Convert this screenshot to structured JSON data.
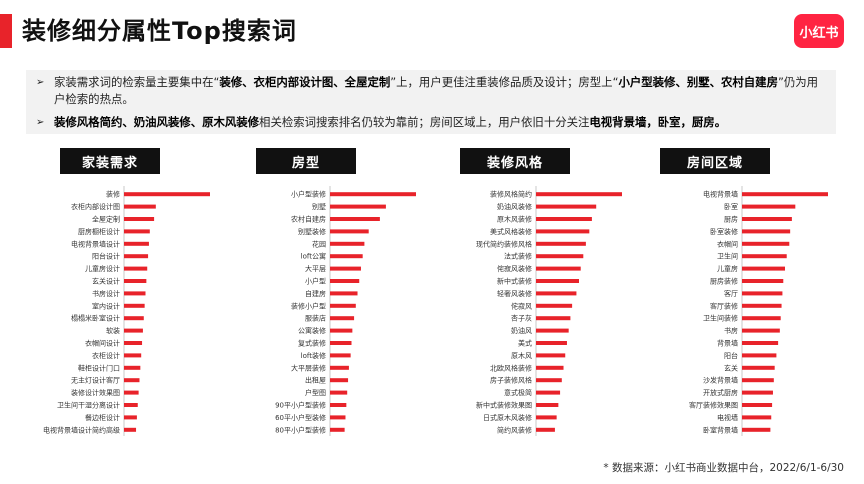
{
  "page": {
    "title": "装修细分属性Top搜索词",
    "logo_text": "小红书",
    "footnote": "* 数据来源：小红书商业数据中台，2022/6/1-6/30",
    "accent_color": "#e8232a"
  },
  "summary": {
    "b1_p1": "家装需求词的检索量主要集中在“",
    "b1_b1": "装修、衣柜内部设计图、全屋定制",
    "b1_p2": "”上，用户更佳注重装修品质及设计；房型上“",
    "b1_b2": "小户型装修、别墅、农村自建房",
    "b1_p3": "”仍为用户检索的热点。",
    "b2_b1": "装修风格简约、奶油风装修、原木风装修",
    "b2_p1": "相关检索词搜索排名仍较为靠前；房间区域上，用户依旧十分关注",
    "b2_b2": "电视背景墙，卧室，厨房。",
    "arrow_icon": "➢"
  },
  "chart_data": [
    {
      "type": "bar",
      "title": "家装需求",
      "categories": [
        "装修",
        "衣柜内部设计图",
        "全屋定制",
        "厨房橱柜设计",
        "电视背景墙设计",
        "阳台设计",
        "儿童房设计",
        "玄关设计",
        "书房设计",
        "室内设计",
        "榻榻米卧室设计",
        "软装",
        "衣帽间设计",
        "衣柜设计",
        "鞋柜设计门口",
        "无主灯设计客厅",
        "装修设计效果图",
        "卫生间干湿分离设计",
        "餐边柜设计",
        "电视背景墙设计简约高级"
      ],
      "values": [
        100,
        37,
        35,
        30,
        29,
        28,
        27,
        26,
        25,
        24,
        23,
        22,
        21,
        20,
        19,
        18,
        17,
        16,
        15,
        14
      ]
    },
    {
      "type": "bar",
      "title": "房型",
      "categories": [
        "小户型装修",
        "别墅",
        "农村自建房",
        "别墅装修",
        "花园",
        "loft公寓",
        "大平层",
        "小户型",
        "自建房",
        "装修小户型",
        "服装店",
        "公寓装修",
        "复式装修",
        "loft装修",
        "大平层装修",
        "出租屋",
        "户型图",
        "90平小户型装修",
        "60平小户型装修",
        "80平小户型装修"
      ],
      "values": [
        100,
        65,
        58,
        45,
        40,
        38,
        36,
        34,
        32,
        30,
        28,
        26,
        25,
        24,
        22,
        21,
        20,
        19,
        18,
        17
      ]
    },
    {
      "type": "bar",
      "title": "装修风格",
      "categories": [
        "装修风格简约",
        "奶油风装修",
        "原木风装修",
        "美式风格装修",
        "现代简约装修风格",
        "法式装修",
        "侘寂风装修",
        "新中式装修",
        "轻奢风装修",
        "侘寂风",
        "杏子灰",
        "奶油风",
        "美式",
        "原木风",
        "北欧风格装修",
        "房子装修风格",
        "意式极简",
        "新中式装修效果图",
        "日式原木风装修",
        "简约风装修"
      ],
      "values": [
        100,
        70,
        65,
        62,
        58,
        55,
        52,
        50,
        47,
        42,
        40,
        38,
        36,
        34,
        32,
        30,
        28,
        26,
        24,
        22
      ]
    },
    {
      "type": "bar",
      "title": "房间区域",
      "categories": [
        "电视背景墙",
        "卧室",
        "厨房",
        "卧室装修",
        "衣帽间",
        "卫生间",
        "儿童房",
        "厨房装修",
        "客厅",
        "客厅装修",
        "卫生间装修",
        "书房",
        "背景墙",
        "阳台",
        "玄关",
        "沙发背景墙",
        "开放式厨房",
        "客厅装修效果图",
        "电视墙",
        "卧室背景墙"
      ],
      "values": [
        100,
        62,
        58,
        56,
        55,
        52,
        50,
        48,
        47,
        46,
        45,
        44,
        42,
        40,
        38,
        37,
        36,
        35,
        34,
        33
      ]
    }
  ]
}
